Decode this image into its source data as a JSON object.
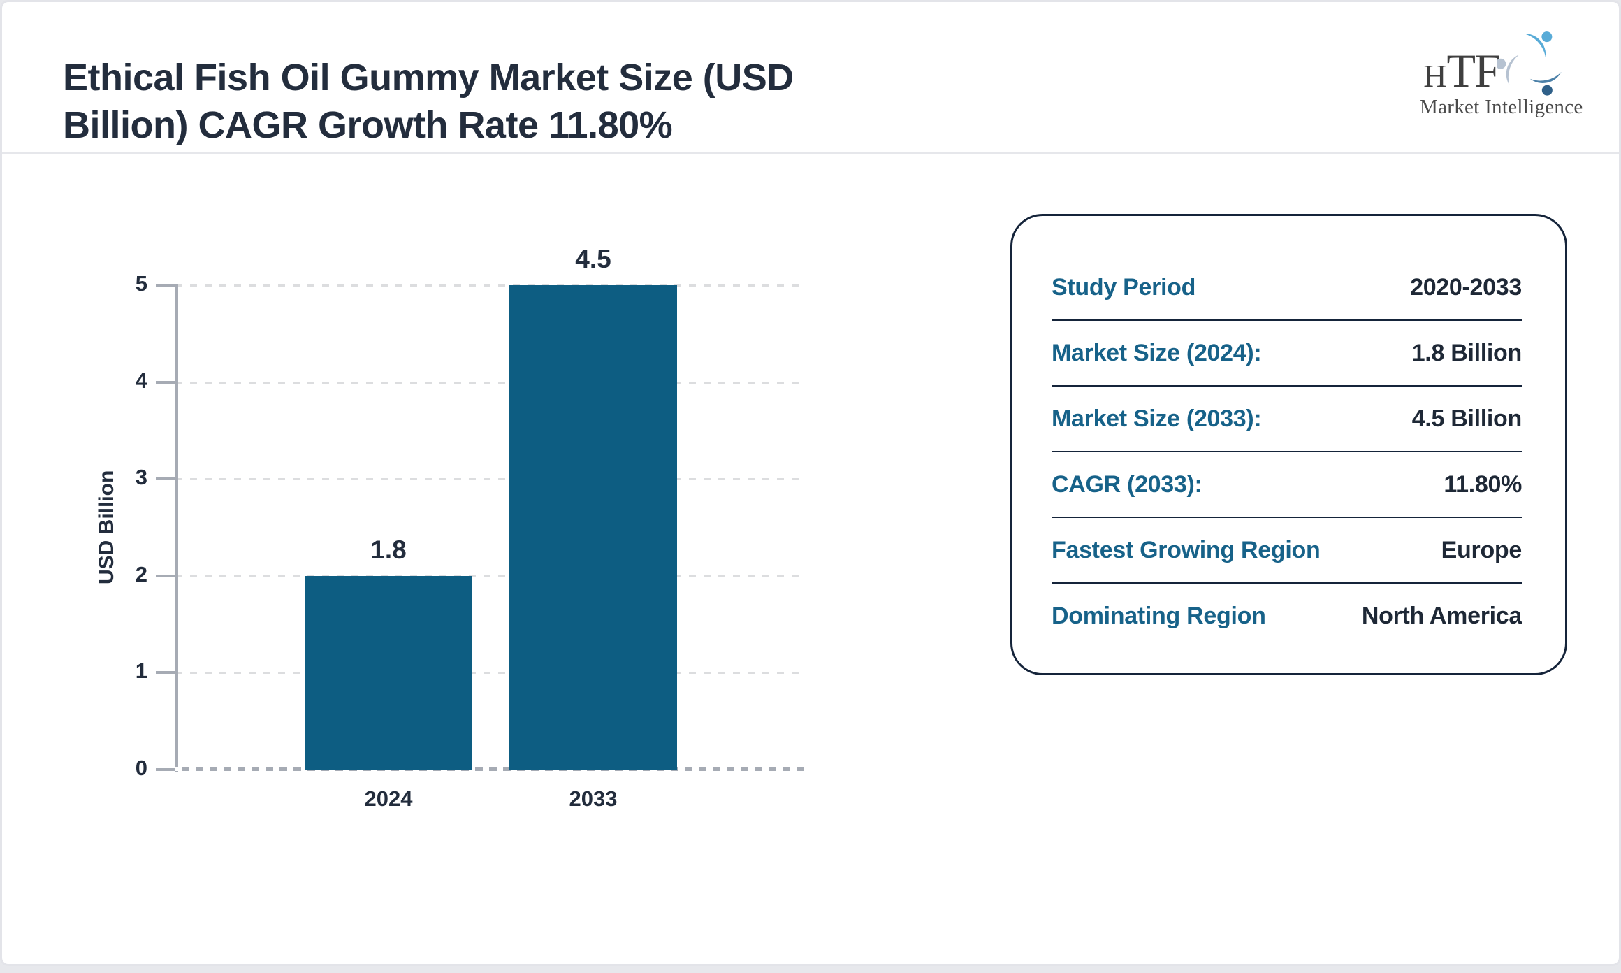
{
  "header": {
    "title_lines": [
      "Ethical Fish Oil Gummy Market Size (USD",
      "Billion) CAGR Growth Rate 11.80%"
    ],
    "logo": {
      "acronym_h": "H",
      "acronym_tf": "TF",
      "subtitle": "Market Intelligence"
    }
  },
  "chart_data": {
    "type": "bar",
    "title": "Ethical Fish Oil Gummy Market Size (USD Billion) CAGR Growth Rate 11.80%",
    "categories": [
      "2024",
      "2033"
    ],
    "values": [
      1.8,
      4.5
    ],
    "value_labels": [
      "1.8",
      "4.5"
    ],
    "xlabel": "",
    "ylabel": "USD Billion",
    "ylim": [
      0,
      5
    ],
    "yticks": [
      0,
      1,
      2,
      3,
      4,
      5
    ],
    "grid": "horizontal-dashed",
    "legend": "none",
    "bar_color": "#0d5d82",
    "note_bars_drawn_to": "bars are rendered proportionally so the max value (4.5) reaches the top gridline (5), and 1.8 reaches the 2 gridline"
  },
  "panel": {
    "rows": [
      {
        "label": "Study Period",
        "value": "2020-2033"
      },
      {
        "label": "Market Size (2024):",
        "value": "1.8 Billion"
      },
      {
        "label": "Market Size (2033):",
        "value": "4.5 Billion"
      },
      {
        "label": "CAGR (2033):",
        "value": "11.80%"
      },
      {
        "label": "Fastest Growing Region",
        "value": "Europe"
      },
      {
        "label": "Dominating Region",
        "value": "North America"
      }
    ]
  },
  "colors": {
    "bar": "#0d5d82",
    "panel_label_teal": "#176289",
    "value_text_dark": "#1e2836",
    "title_dark": "#232d3d",
    "axis_gray": "#a6abb4",
    "gridline_gray": "#dcdddf",
    "panel_border_navy": "#15243a",
    "page_border_gray": "#e3e4e9",
    "logo_light_blue": "#58abd7",
    "logo_steel_blue": "#4b80a8",
    "logo_pale_blue": "#b6c2d1"
  }
}
